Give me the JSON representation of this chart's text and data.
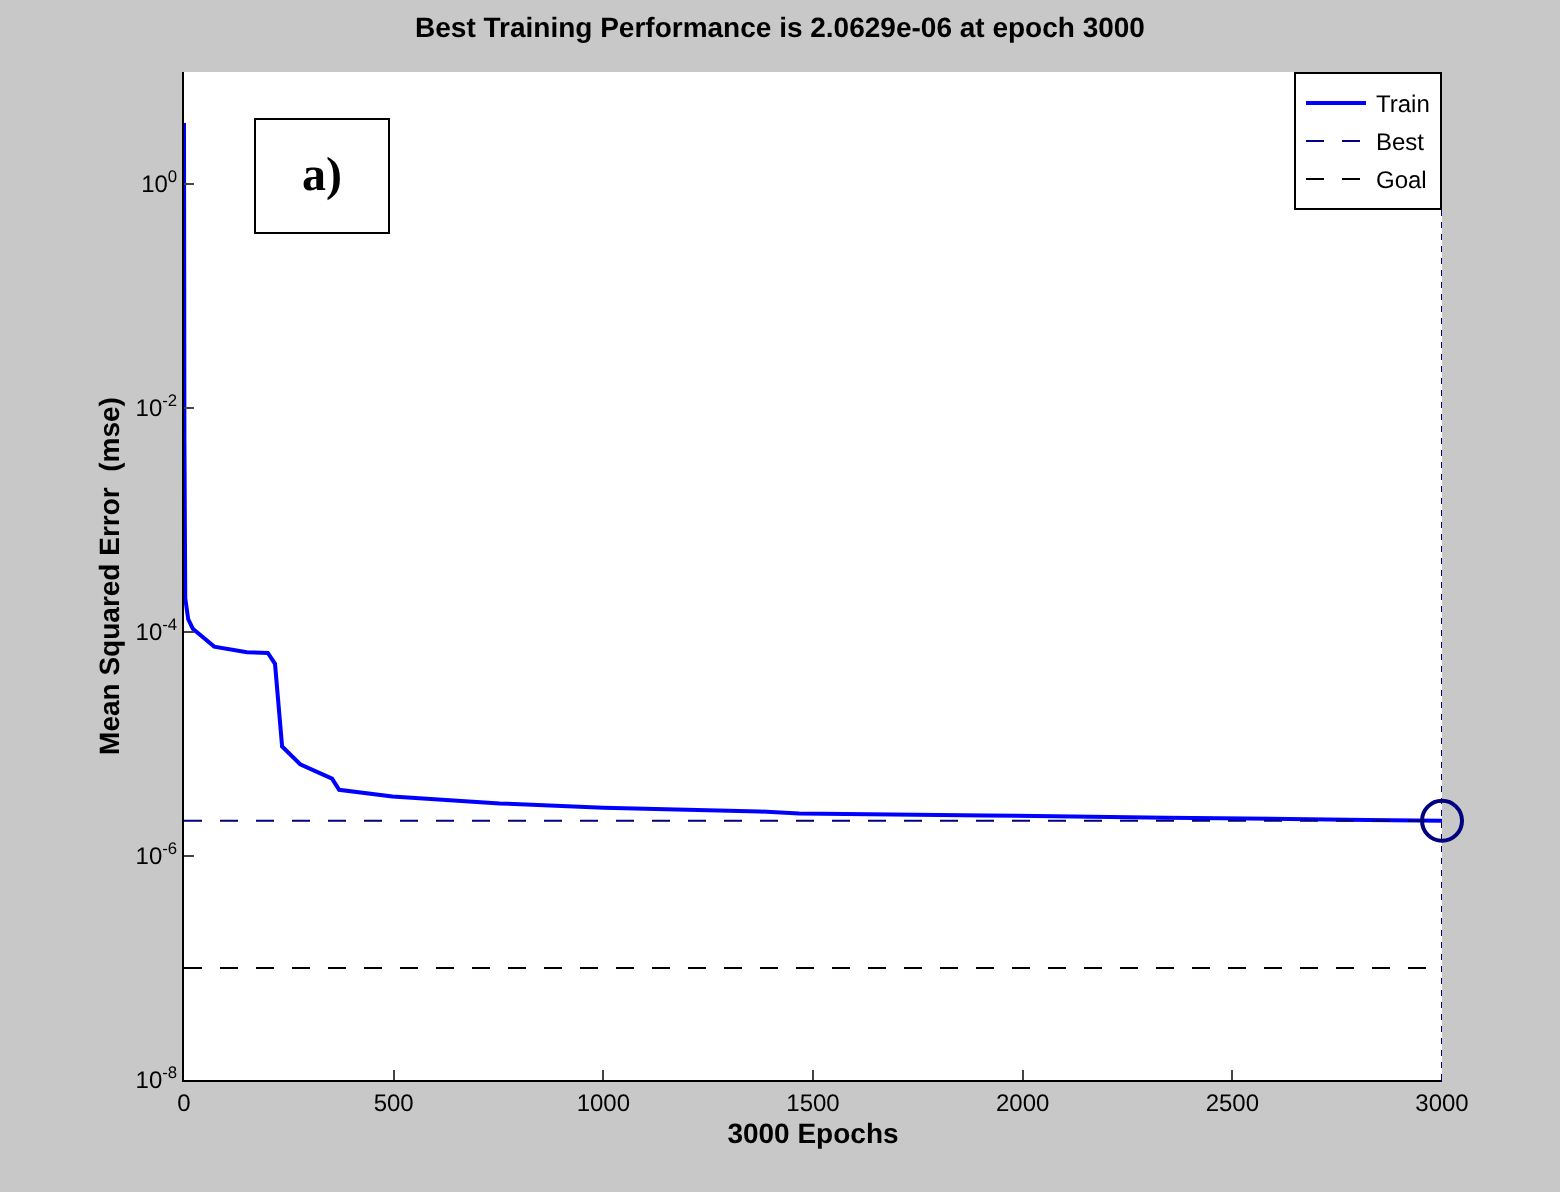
{
  "chart_data": {
    "type": "line",
    "title": "Best Training Performance is 2.0629e-06 at epoch 3000",
    "xlabel": "3000 Epochs",
    "ylabel": "Mean Squared Error  (mse)",
    "annotations": [
      "a)"
    ],
    "series": [
      {
        "name": "Train",
        "color": "#0000ff",
        "marker": "none",
        "line_style": "solid",
        "x": [
          0,
          1,
          3,
          10,
          21,
          72,
          150,
          200,
          217,
          234,
          277,
          353,
          370,
          497,
          753,
          1000,
          1373,
          1467,
          1910,
          2344,
          2821,
          3000
        ],
        "values": [
          3.5,
          0.005,
          0.0002,
          0.00013,
          0.000107,
          7.4e-05,
          6.6e-05,
          6.5e-05,
          5.2e-05,
          9.5e-06,
          6.6e-06,
          4.9e-06,
          3.9e-06,
          3.4e-06,
          2.95e-06,
          2.7e-06,
          2.5e-06,
          2.4e-06,
          2.3e-06,
          2.2e-06,
          2.1e-06,
          2.0629e-06
        ]
      },
      {
        "type": "scatter",
        "color": "#000080",
        "marker": "circle",
        "x": [
          3000
        ],
        "values": [
          2.0629e-06
        ]
      }
    ],
    "ref_lines": [
      {
        "axis": "y",
        "value": 2.0629e-06,
        "label": "Best",
        "color": "#000080",
        "line_style": "dashed"
      },
      {
        "axis": "y",
        "value": 1e-07,
        "label": "Goal",
        "color": "#000000",
        "line_style": "dashed"
      },
      {
        "axis": "x",
        "value": 3000,
        "color": "#000080",
        "line_style": "dotted"
      }
    ],
    "log": "y",
    "legend": "top right",
    "xlim": [
      0,
      3000
    ],
    "xticks": [
      0,
      500,
      1000,
      1500,
      2000,
      2500,
      3000
    ],
    "ylim": [
      1e-08,
      10
    ],
    "yticks": [
      {
        "value": 1e-08,
        "label": "10$^{-8}$"
      },
      {
        "value": 1e-06,
        "label": "10$^{-6}$"
      },
      {
        "value": 0.0001,
        "label": "10$^{-4}$"
      },
      {
        "value": 0.01,
        "label": "10$^{-2}$"
      },
      {
        "value": 1,
        "label": "10$^{0}$"
      }
    ]
  }
}
